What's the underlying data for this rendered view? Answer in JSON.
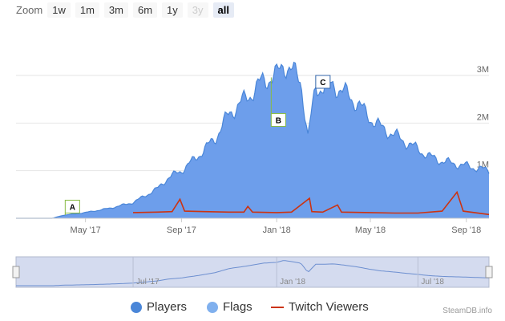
{
  "zoom": {
    "label": "Zoom",
    "buttons": [
      {
        "label": "1w",
        "state": "normal"
      },
      {
        "label": "1m",
        "state": "normal"
      },
      {
        "label": "3m",
        "state": "normal"
      },
      {
        "label": "6m",
        "state": "normal"
      },
      {
        "label": "1y",
        "state": "normal"
      },
      {
        "label": "3y",
        "state": "disabled"
      },
      {
        "label": "all",
        "state": "active"
      }
    ]
  },
  "chart_data": {
    "type": "area",
    "x_axis": {
      "start": "2017-02-01",
      "end": "2018-09-30",
      "ticks": [
        {
          "label": "May '17",
          "date": "2017-05-01"
        },
        {
          "label": "Sep '17",
          "date": "2017-09-01"
        },
        {
          "label": "Jan '18",
          "date": "2018-01-01"
        },
        {
          "label": "May '18",
          "date": "2018-05-01"
        },
        {
          "label": "Sep '18",
          "date": "2018-09-01"
        }
      ]
    },
    "y_axis": {
      "min": 0,
      "max": 3000000,
      "ticks": [
        {
          "label": "1M",
          "value": 1000000
        },
        {
          "label": "2M",
          "value": 2000000
        },
        {
          "label": "3M",
          "value": 3000000
        }
      ],
      "grid": true
    },
    "series": [
      {
        "name": "Players",
        "color": "#4a86d8",
        "fill": "#6d9eeb",
        "points": [
          [
            "2017-02-01",
            0
          ],
          [
            "2017-03-20",
            0
          ],
          [
            "2017-04-01",
            60000
          ],
          [
            "2017-05-01",
            120000
          ],
          [
            "2017-06-01",
            210000
          ],
          [
            "2017-07-01",
            330000
          ],
          [
            "2017-08-01",
            620000
          ],
          [
            "2017-08-15",
            850000
          ],
          [
            "2017-09-01",
            1000000
          ],
          [
            "2017-09-15",
            1200000
          ],
          [
            "2017-10-01",
            1450000
          ],
          [
            "2017-10-15",
            1700000
          ],
          [
            "2017-11-01",
            2200000
          ],
          [
            "2017-11-15",
            2400000
          ],
          [
            "2017-12-01",
            2650000
          ],
          [
            "2017-12-15",
            2900000
          ],
          [
            "2018-01-01",
            3000000
          ],
          [
            "2018-01-10",
            3250000
          ],
          [
            "2018-01-20",
            3100000
          ],
          [
            "2018-02-01",
            2900000
          ],
          [
            "2018-02-10",
            1700000
          ],
          [
            "2018-02-20",
            2750000
          ],
          [
            "2018-03-01",
            2750000
          ],
          [
            "2018-03-15",
            2800000
          ],
          [
            "2018-04-01",
            2600000
          ],
          [
            "2018-04-15",
            2400000
          ],
          [
            "2018-05-01",
            2100000
          ],
          [
            "2018-05-15",
            1900000
          ],
          [
            "2018-06-01",
            1750000
          ],
          [
            "2018-06-15",
            1600000
          ],
          [
            "2018-07-01",
            1450000
          ],
          [
            "2018-07-15",
            1300000
          ],
          [
            "2018-08-01",
            1200000
          ],
          [
            "2018-08-15",
            1150000
          ],
          [
            "2018-09-01",
            1100000
          ],
          [
            "2018-09-30",
            1000000
          ]
        ]
      },
      {
        "name": "Flags",
        "color": "#80b0ee",
        "markers": [
          {
            "label": "A",
            "date": "2017-04-05"
          },
          {
            "label": "B",
            "date": "2017-12-25"
          },
          {
            "label": "C",
            "date": "2018-02-20"
          }
        ]
      },
      {
        "name": "Twitch Viewers",
        "color": "#cc3311",
        "points": [
          [
            "2017-07-01",
            120000
          ],
          [
            "2017-08-01",
            130000
          ],
          [
            "2017-08-20",
            140000
          ],
          [
            "2017-08-30",
            400000
          ],
          [
            "2017-09-05",
            150000
          ],
          [
            "2017-10-01",
            140000
          ],
          [
            "2017-11-01",
            130000
          ],
          [
            "2017-11-20",
            130000
          ],
          [
            "2017-11-25",
            250000
          ],
          [
            "2017-12-01",
            130000
          ],
          [
            "2018-01-01",
            120000
          ],
          [
            "2018-01-20",
            130000
          ],
          [
            "2018-02-12",
            420000
          ],
          [
            "2018-02-15",
            140000
          ],
          [
            "2018-03-01",
            130000
          ],
          [
            "2018-03-20",
            280000
          ],
          [
            "2018-03-25",
            130000
          ],
          [
            "2018-05-01",
            120000
          ],
          [
            "2018-06-01",
            110000
          ],
          [
            "2018-07-01",
            110000
          ],
          [
            "2018-08-01",
            150000
          ],
          [
            "2018-08-20",
            550000
          ],
          [
            "2018-08-28",
            150000
          ],
          [
            "2018-09-30",
            80000
          ]
        ]
      }
    ],
    "legend_position": "bottom"
  },
  "navigator": {
    "tick_labels": [
      "Jul '17",
      "Jan '18",
      "Jul '18"
    ]
  },
  "credit": "SteamDB.info"
}
